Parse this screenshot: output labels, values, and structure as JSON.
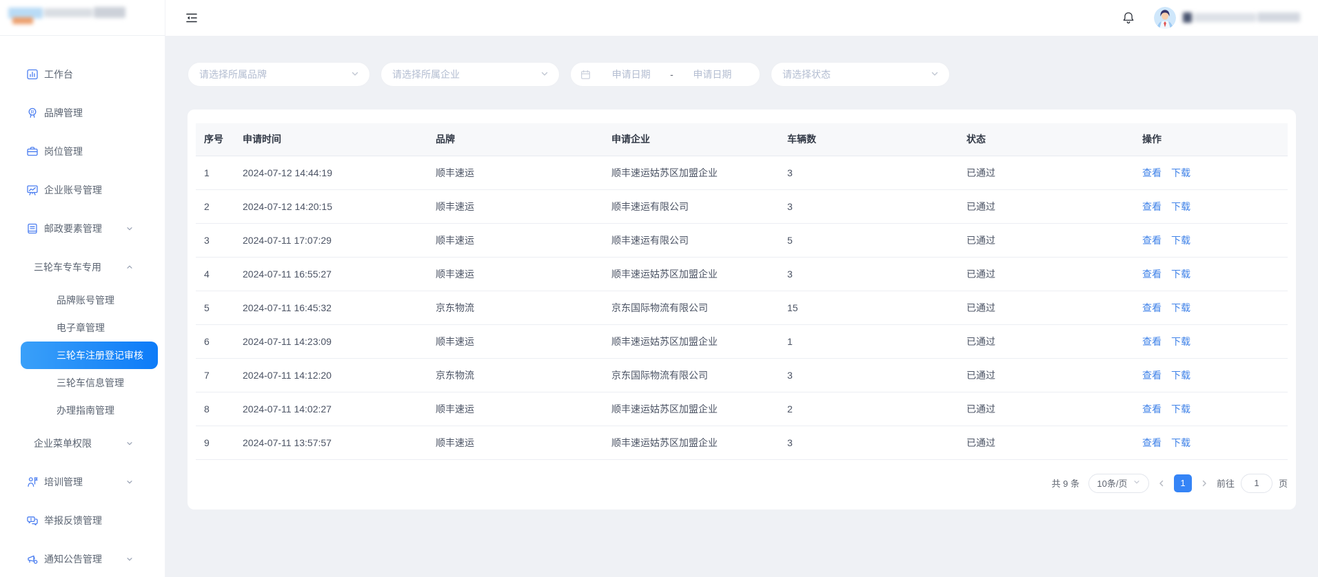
{
  "colors": {
    "accent": "#3584f6",
    "link": "#3f82e8",
    "active_item_gradient_start": "#3aa0f9",
    "active_item_gradient_end": "#0d7bf8"
  },
  "sidebar": {
    "menu": [
      {
        "id": "workbench",
        "label": "工作台",
        "icon": "bar-chart-icon"
      },
      {
        "id": "brand-management",
        "label": "品牌管理",
        "icon": "brand-medal-icon"
      },
      {
        "id": "post-management",
        "label": "岗位管理",
        "icon": "briefcase-icon"
      },
      {
        "id": "enterprise-account-management",
        "label": "企业账号管理",
        "icon": "monitor-chart-icon"
      },
      {
        "id": "postal-elements-management",
        "label": "邮政要素管理",
        "icon": "document-icon",
        "expandable": true,
        "expanded": false
      },
      {
        "id": "tricycle-special",
        "label": "三轮车专车专用",
        "expandable": true,
        "expanded": true,
        "children": [
          {
            "id": "brand-account-management",
            "label": "品牌账号管理"
          },
          {
            "id": "e-seal-management",
            "label": "电子章管理"
          },
          {
            "id": "tricycle-registration-review",
            "label": "三轮车注册登记审核",
            "active": true
          },
          {
            "id": "tricycle-info-management",
            "label": "三轮车信息管理"
          },
          {
            "id": "guide-management",
            "label": "办理指南管理"
          }
        ]
      },
      {
        "id": "enterprise-menu-permission",
        "label": "企业菜单权限",
        "expandable": true,
        "expanded": false
      },
      {
        "id": "training-management",
        "label": "培训管理",
        "icon": "training-icon",
        "expandable": true,
        "expanded": false
      },
      {
        "id": "report-feedback-management",
        "label": "举报反馈管理",
        "icon": "feedback-icon"
      },
      {
        "id": "notice-management",
        "label": "通知公告管理",
        "icon": "announcement-icon",
        "expandable": true,
        "expanded": false
      }
    ]
  },
  "filters": {
    "brand": {
      "placeholder": "请选择所属品牌",
      "icon": "chevron-down-icon"
    },
    "company": {
      "placeholder": "请选择所属企业",
      "icon": "chevron-down-icon"
    },
    "date_range": {
      "icon": "calendar-icon",
      "start_placeholder": "申请日期",
      "separator": "-",
      "end_placeholder": "申请日期"
    },
    "status": {
      "placeholder": "请选择状态",
      "icon": "chevron-down-icon"
    }
  },
  "table": {
    "columns": [
      "序号",
      "申请时间",
      "品牌",
      "申请企业",
      "车辆数",
      "状态",
      "操作"
    ],
    "row_actions": [
      "查看",
      "下载"
    ],
    "rows": [
      {
        "seq": "1",
        "time": "2024-07-12 14:44:19",
        "brand": "顺丰速运",
        "company": "顺丰速运姑苏区加盟企业",
        "vehicles": "3",
        "status": "已通过"
      },
      {
        "seq": "2",
        "time": "2024-07-12 14:20:15",
        "brand": "顺丰速运",
        "company": "顺丰速运有限公司",
        "vehicles": "3",
        "status": "已通过"
      },
      {
        "seq": "3",
        "time": "2024-07-11 17:07:29",
        "brand": "顺丰速运",
        "company": "顺丰速运有限公司",
        "vehicles": "5",
        "status": "已通过"
      },
      {
        "seq": "4",
        "time": "2024-07-11 16:55:27",
        "brand": "顺丰速运",
        "company": "顺丰速运姑苏区加盟企业",
        "vehicles": "3",
        "status": "已通过"
      },
      {
        "seq": "5",
        "time": "2024-07-11 16:45:32",
        "brand": "京东物流",
        "company": "京东国际物流有限公司",
        "vehicles": "15",
        "status": "已通过"
      },
      {
        "seq": "6",
        "time": "2024-07-11 14:23:09",
        "brand": "顺丰速运",
        "company": "顺丰速运姑苏区加盟企业",
        "vehicles": "1",
        "status": "已通过"
      },
      {
        "seq": "7",
        "time": "2024-07-11 14:12:20",
        "brand": "京东物流",
        "company": "京东国际物流有限公司",
        "vehicles": "3",
        "status": "已通过"
      },
      {
        "seq": "8",
        "time": "2024-07-11 14:02:27",
        "brand": "顺丰速运",
        "company": "顺丰速运姑苏区加盟企业",
        "vehicles": "2",
        "status": "已通过"
      },
      {
        "seq": "9",
        "time": "2024-07-11 13:57:57",
        "brand": "顺丰速运",
        "company": "顺丰速运姑苏区加盟企业",
        "vehicles": "3",
        "status": "已通过"
      }
    ]
  },
  "pagination": {
    "total": "共 9 条",
    "page_size": "10条/页",
    "current_page": "1",
    "goto_label": "前往",
    "page_unit": "页"
  }
}
